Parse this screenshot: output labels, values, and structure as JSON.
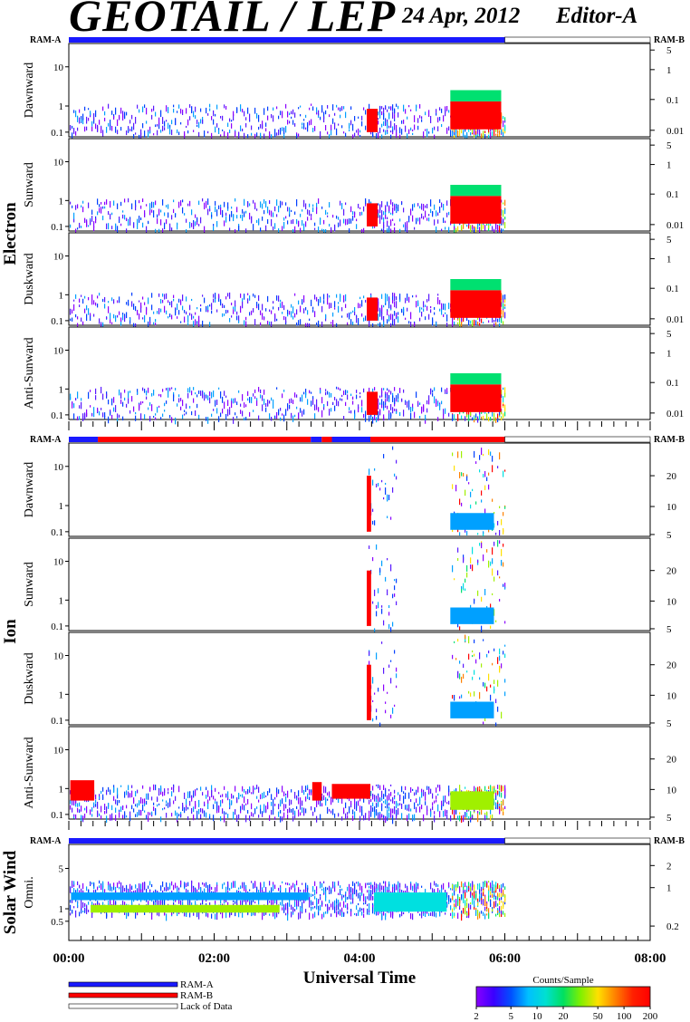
{
  "header": {
    "title": "GEOTAIL / LEP",
    "date": "24 Apr, 2012",
    "editor": "Editor-A"
  },
  "chart_data": {
    "type": "heatmap",
    "title": "GEOTAIL / LEP",
    "xlabel": "Universal Time",
    "x_ticks": [
      "00:00",
      "02:00",
      "04:00",
      "06:00",
      "08:00"
    ],
    "xlim_hours": [
      0,
      8
    ],
    "data_end_hours": 6.0,
    "colorbar": {
      "label": "Counts/Sample",
      "ticks": [
        "2",
        "5",
        "10",
        "20",
        "50",
        "100",
        "200"
      ],
      "scale": "log"
    },
    "legend": {
      "items": [
        {
          "label": "RAM-A",
          "color": "#1a1aff"
        },
        {
          "label": "RAM-B",
          "color": "#ff0000"
        },
        {
          "label": "Lack of Data",
          "color": "#ffffff"
        }
      ]
    },
    "groups": [
      {
        "name": "Electron",
        "ram_left": "RAM-A",
        "ram_right": "RAM-B",
        "ram_segments": [
          {
            "start": 0.0,
            "end": 6.0,
            "mode": "RAM-A"
          },
          {
            "start": 6.0,
            "end": 8.0,
            "mode": "none"
          }
        ],
        "panels": [
          {
            "label": "Dawnward",
            "left_ticks": [
              "10",
              "1",
              "0.1"
            ],
            "right_ticks": [
              "5",
              "1",
              "0.1",
              "0.01"
            ]
          },
          {
            "label": "Sunward",
            "left_ticks": [
              "10",
              "1",
              "0.1"
            ],
            "right_ticks": [
              "5",
              "1",
              "0.1",
              "0.01"
            ]
          },
          {
            "label": "Duskward",
            "left_ticks": [
              "10",
              "1",
              "0.1"
            ],
            "right_ticks": [
              "5",
              "1",
              "0.1",
              "0.01"
            ]
          },
          {
            "label": "Anti-Sunward",
            "left_ticks": [
              "10",
              "1",
              "0.1"
            ],
            "right_ticks": [
              "5",
              "1",
              "0.1",
              "0.01"
            ]
          }
        ]
      },
      {
        "name": "Ion",
        "ram_left": "RAM-A",
        "ram_right": "RAM-B",
        "ram_segments": [
          {
            "start": 0.0,
            "end": 0.4,
            "mode": "RAM-A"
          },
          {
            "start": 0.4,
            "end": 3.33,
            "mode": "RAM-B"
          },
          {
            "start": 3.33,
            "end": 3.48,
            "mode": "RAM-A"
          },
          {
            "start": 3.48,
            "end": 3.62,
            "mode": "RAM-B"
          },
          {
            "start": 3.62,
            "end": 4.15,
            "mode": "RAM-A"
          },
          {
            "start": 4.15,
            "end": 6.0,
            "mode": "RAM-B"
          },
          {
            "start": 6.0,
            "end": 8.0,
            "mode": "none"
          }
        ],
        "panels": [
          {
            "label": "Dawnward",
            "left_ticks": [
              "10",
              "1",
              "0.1"
            ],
            "right_ticks": [
              "20",
              "10",
              "5"
            ]
          },
          {
            "label": "Sunward",
            "left_ticks": [
              "10",
              "1",
              "0.1"
            ],
            "right_ticks": [
              "20",
              "10",
              "5"
            ]
          },
          {
            "label": "Duskward",
            "left_ticks": [
              "10",
              "1",
              "0.1"
            ],
            "right_ticks": [
              "20",
              "10",
              "5"
            ]
          },
          {
            "label": "Anti-Sunward",
            "left_ticks": [
              "10",
              "1",
              "0.1"
            ],
            "right_ticks": [
              "20",
              "10",
              "5"
            ]
          }
        ]
      },
      {
        "name": "Solar Wind",
        "ram_left": "RAM-A",
        "ram_right": "RAM-B",
        "ram_segments": [
          {
            "start": 0.0,
            "end": 6.0,
            "mode": "RAM-A"
          },
          {
            "start": 6.0,
            "end": 8.0,
            "mode": "none"
          }
        ],
        "panels": [
          {
            "label": "Omni.",
            "left_ticks": [
              "5",
              "1",
              "0.5"
            ],
            "right_ticks": [
              "2",
              "1",
              "0.2"
            ]
          }
        ]
      }
    ]
  }
}
